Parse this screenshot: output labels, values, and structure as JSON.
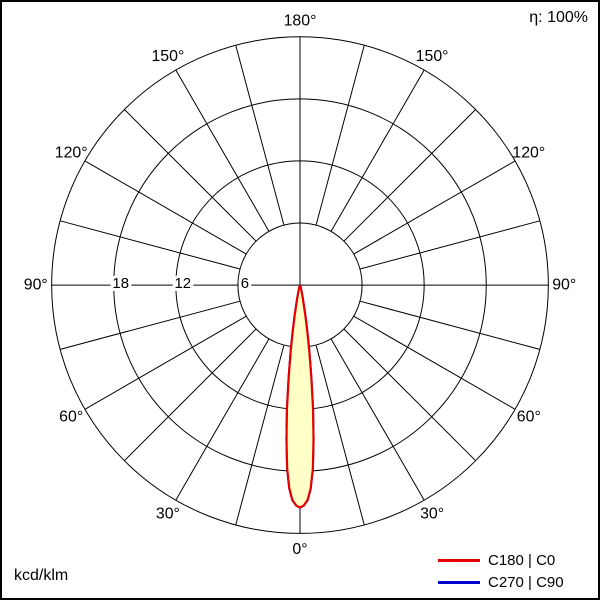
{
  "header": {
    "efficiency": "η: 100%"
  },
  "footer": {
    "unit": "kcd/klm"
  },
  "legend": [
    {
      "label": "C180 | C0",
      "color": "#e60000"
    },
    {
      "label": "C270 | C90",
      "color": "#0000cc"
    }
  ],
  "chart_data": {
    "type": "polar",
    "subtype": "luminous-intensity-distribution",
    "unit": "kcd/klm",
    "efficiency_label": "η: 100%",
    "grid": {
      "angle_step_deg": 15,
      "radial_circles": [
        6,
        12,
        18,
        24
      ],
      "radial_max": 24,
      "tick_labels": [
        {
          "text": "18",
          "value": 18
        },
        {
          "text": "12",
          "value": 12
        },
        {
          "text": "6",
          "value": 6
        }
      ]
    },
    "angle_labels": [
      {
        "text": "180°",
        "gamma": 180,
        "side": "top"
      },
      {
        "text": "150°",
        "gamma": 150,
        "side": "left"
      },
      {
        "text": "150°",
        "gamma": 150,
        "side": "right"
      },
      {
        "text": "120°",
        "gamma": 120,
        "side": "left"
      },
      {
        "text": "120°",
        "gamma": 120,
        "side": "right"
      },
      {
        "text": "90°",
        "gamma": 90,
        "side": "left"
      },
      {
        "text": "90°",
        "gamma": 90,
        "side": "right"
      },
      {
        "text": "60°",
        "gamma": 60,
        "side": "left"
      },
      {
        "text": "60°",
        "gamma": 60,
        "side": "right"
      },
      {
        "text": "30°",
        "gamma": 30,
        "side": "left"
      },
      {
        "text": "30°",
        "gamma": 30,
        "side": "right"
      },
      {
        "text": "0°",
        "gamma": 0,
        "side": "bottom"
      }
    ],
    "series": [
      {
        "name": "C180 | C0",
        "color": "#e60000",
        "fill": "#ffffc8",
        "gamma_deg": [
          -20,
          -15,
          -12,
          -10,
          -9,
          -8,
          -7,
          -6,
          -5,
          -4,
          -3,
          -2,
          -1,
          0,
          1,
          2,
          3,
          4,
          5,
          6,
          7,
          8,
          9,
          10,
          12,
          15,
          20
        ],
        "values_kcd_per_klm": [
          0.1,
          0.4,
          1.2,
          3,
          4.5,
          6.5,
          9,
          12,
          15,
          17.8,
          19.7,
          20.8,
          21.3,
          21.5,
          21.3,
          20.8,
          19.7,
          17.8,
          15,
          12,
          9,
          6.5,
          4.5,
          3,
          1.2,
          0.4,
          0.1
        ]
      },
      {
        "name": "C270 | C90",
        "color": "#0000cc",
        "fill": null,
        "gamma_deg": [
          -20,
          -15,
          -12,
          -10,
          -9,
          -8,
          -7,
          -6,
          -5,
          -4,
          -3,
          -2,
          -1,
          0,
          1,
          2,
          3,
          4,
          5,
          6,
          7,
          8,
          9,
          10,
          12,
          15,
          20
        ],
        "values_kcd_per_klm": [
          0.1,
          0.4,
          1.2,
          3,
          4.5,
          6.5,
          9,
          12,
          15,
          17.8,
          19.7,
          20.8,
          21.3,
          21.5,
          21.3,
          20.8,
          19.7,
          17.8,
          15,
          12,
          9,
          6.5,
          4.5,
          3,
          1.2,
          0.4,
          0.1
        ]
      }
    ]
  }
}
